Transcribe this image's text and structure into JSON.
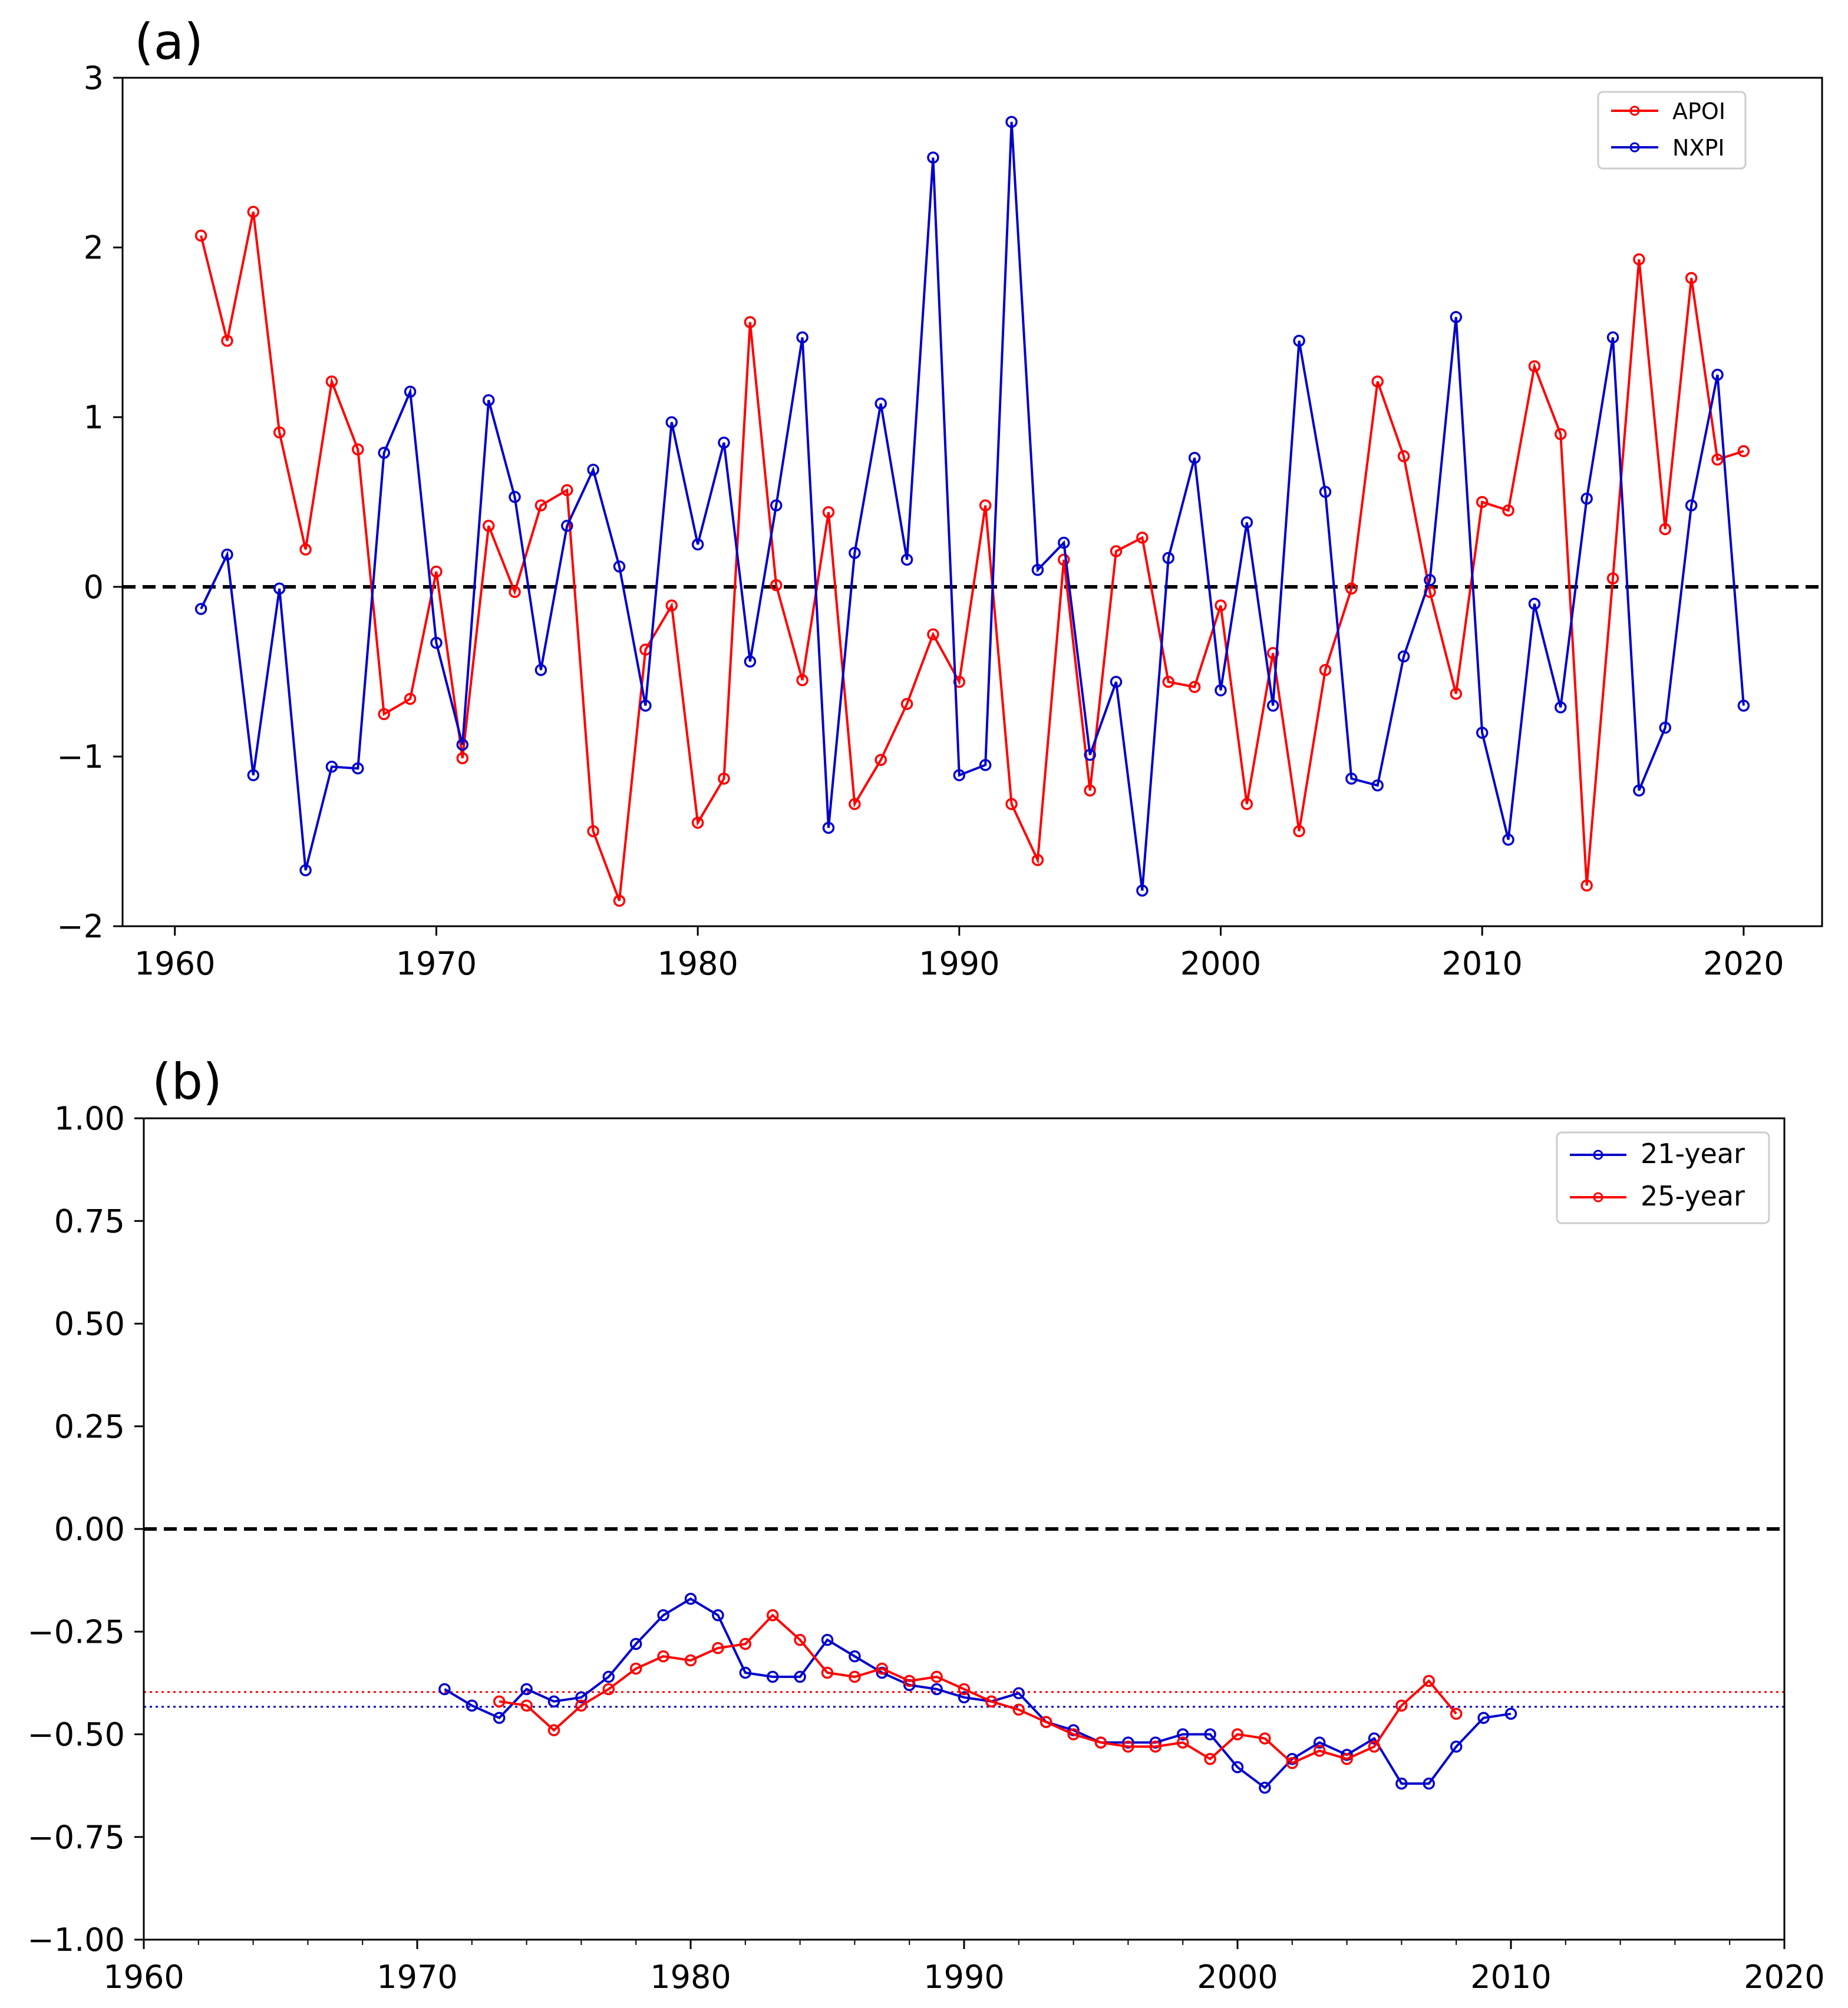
{
  "chart_data": [
    {
      "type": "line",
      "panel_label": "(a)",
      "title": "",
      "xlabel": "",
      "ylabel": "",
      "xlim": [
        1958,
        2023
      ],
      "ylim": [
        -2,
        3
      ],
      "xticks": [
        1960,
        1970,
        1980,
        1990,
        2000,
        2010,
        2020
      ],
      "xtick_labels": [
        "1960",
        "1970",
        "1980",
        "1990",
        "2000",
        "2010",
        "2020"
      ],
      "yticks": [
        -2,
        -1,
        0,
        1,
        2,
        3
      ],
      "ytick_labels": [
        "−2",
        "−1",
        "0",
        "1",
        "2",
        "3"
      ],
      "reference_lines": [
        {
          "y": 0,
          "style": "dashed",
          "color": "#000000"
        }
      ],
      "legend_position": "upper right",
      "series": [
        {
          "name": "APOI",
          "color": "#ff0000",
          "x": [
            1961,
            1962,
            1963,
            1964,
            1965,
            1966,
            1967,
            1968,
            1969,
            1970,
            1971,
            1972,
            1973,
            1974,
            1975,
            1976,
            1977,
            1978,
            1979,
            1980,
            1981,
            1982,
            1983,
            1984,
            1985,
            1986,
            1987,
            1988,
            1989,
            1990,
            1991,
            1992,
            1993,
            1994,
            1995,
            1996,
            1997,
            1998,
            1999,
            2000,
            2001,
            2002,
            2003,
            2004,
            2005,
            2006,
            2007,
            2008,
            2009,
            2010,
            2011,
            2012,
            2013,
            2014,
            2015,
            2016,
            2017,
            2018,
            2019,
            2020
          ],
          "values": [
            2.07,
            1.45,
            2.21,
            0.91,
            0.22,
            1.21,
            0.81,
            -0.75,
            -0.66,
            0.09,
            -1.01,
            0.36,
            -0.03,
            0.48,
            0.57,
            -1.44,
            -1.85,
            -0.37,
            -0.11,
            -1.39,
            -1.13,
            1.56,
            0.01,
            -0.55,
            0.44,
            -1.28,
            -1.02,
            -0.69,
            -0.28,
            -0.56,
            0.48,
            -1.28,
            -1.61,
            0.16,
            -1.2,
            0.21,
            0.29,
            -0.56,
            -0.59,
            -0.11,
            -1.28,
            -0.39,
            -1.44,
            -0.49,
            -0.01,
            1.21,
            0.77,
            -0.03,
            -0.63,
            0.5,
            0.45,
            1.3,
            0.9,
            -1.76,
            0.05,
            1.93,
            0.34,
            1.82,
            0.75,
            0.8
          ]
        },
        {
          "name": "NXPI",
          "color": "#0000cc",
          "x": [
            1961,
            1962,
            1963,
            1964,
            1965,
            1966,
            1967,
            1968,
            1969,
            1970,
            1971,
            1972,
            1973,
            1974,
            1975,
            1976,
            1977,
            1978,
            1979,
            1980,
            1981,
            1982,
            1983,
            1984,
            1985,
            1986,
            1987,
            1988,
            1989,
            1990,
            1991,
            1992,
            1993,
            1994,
            1995,
            1996,
            1997,
            1998,
            1999,
            2000,
            2001,
            2002,
            2003,
            2004,
            2005,
            2006,
            2007,
            2008,
            2009,
            2010,
            2011,
            2012,
            2013,
            2014,
            2015,
            2016,
            2017,
            2018,
            2019,
            2020
          ],
          "values": [
            -0.13,
            0.19,
            -1.11,
            -0.01,
            -1.67,
            -1.06,
            -1.07,
            0.79,
            1.15,
            -0.33,
            -0.93,
            1.1,
            0.53,
            -0.49,
            0.36,
            0.69,
            0.12,
            -0.7,
            0.97,
            0.25,
            0.85,
            -0.44,
            0.48,
            1.47,
            -1.42,
            0.2,
            1.08,
            0.16,
            2.53,
            -1.11,
            -1.05,
            2.74,
            0.1,
            0.26,
            -0.99,
            -0.56,
            -1.79,
            0.17,
            0.76,
            -0.61,
            0.38,
            -0.7,
            1.45,
            0.56,
            -1.13,
            -1.17,
            -0.41,
            0.04,
            1.59,
            -0.86,
            -1.49,
            -0.1,
            -0.71,
            0.52,
            1.47,
            -1.2,
            -0.83,
            0.48,
            1.25,
            -0.7
          ]
        }
      ]
    },
    {
      "type": "line",
      "panel_label": "(b)",
      "title": "",
      "xlabel": "",
      "ylabel": "",
      "xlim": [
        1960,
        2020
      ],
      "ylim": [
        -1.0,
        1.0
      ],
      "xticks": [
        1960,
        1970,
        1980,
        1990,
        2000,
        2010,
        2020
      ],
      "xtick_labels": [
        "1960",
        "1970",
        "1980",
        "1990",
        "2000",
        "2010",
        "2020"
      ],
      "yticks": [
        -1.0,
        -0.75,
        -0.5,
        -0.25,
        0.0,
        0.25,
        0.5,
        0.75,
        1.0
      ],
      "ytick_labels": [
        "−1.00",
        "−0.75",
        "−0.50",
        "−0.25",
        "0.00",
        "0.25",
        "0.50",
        "0.75",
        "1.00"
      ],
      "reference_lines": [
        {
          "y": 0,
          "style": "dashed",
          "color": "#000000"
        },
        {
          "y": -0.397,
          "style": "dotted",
          "color": "#ff0000"
        },
        {
          "y": -0.433,
          "style": "dotted",
          "color": "#0000cc"
        }
      ],
      "legend_position": "upper right",
      "series": [
        {
          "name": "21-year",
          "color": "#0000cc",
          "x": [
            1971,
            1972,
            1973,
            1974,
            1975,
            1976,
            1977,
            1978,
            1979,
            1980,
            1981,
            1982,
            1983,
            1984,
            1985,
            1986,
            1987,
            1988,
            1989,
            1990,
            1991,
            1992,
            1993,
            1994,
            1995,
            1996,
            1997,
            1998,
            1999,
            2000,
            2001,
            2002,
            2003,
            2004,
            2005,
            2006,
            2007,
            2008,
            2009,
            2010
          ],
          "values": [
            -0.39,
            -0.43,
            -0.46,
            -0.39,
            -0.42,
            -0.41,
            -0.36,
            -0.28,
            -0.21,
            -0.17,
            -0.21,
            -0.35,
            -0.36,
            -0.36,
            -0.27,
            -0.31,
            -0.35,
            -0.38,
            -0.39,
            -0.41,
            -0.42,
            -0.4,
            -0.47,
            -0.49,
            -0.52,
            -0.52,
            -0.52,
            -0.5,
            -0.5,
            -0.58,
            -0.63,
            -0.56,
            -0.52,
            -0.55,
            -0.51,
            -0.62,
            -0.62,
            -0.53,
            -0.46,
            -0.45
          ]
        },
        {
          "name": "25-year",
          "color": "#ff0000",
          "x": [
            1973,
            1974,
            1975,
            1976,
            1977,
            1978,
            1979,
            1980,
            1981,
            1982,
            1983,
            1984,
            1985,
            1986,
            1987,
            1988,
            1989,
            1990,
            1991,
            1992,
            1993,
            1994,
            1995,
            1996,
            1997,
            1998,
            1999,
            2000,
            2001,
            2002,
            2003,
            2004,
            2005,
            2006,
            2007,
            2008
          ],
          "values": [
            -0.42,
            -0.43,
            -0.49,
            -0.43,
            -0.39,
            -0.34,
            -0.31,
            -0.32,
            -0.29,
            -0.28,
            -0.21,
            -0.27,
            -0.35,
            -0.36,
            -0.34,
            -0.37,
            -0.36,
            -0.39,
            -0.42,
            -0.44,
            -0.47,
            -0.5,
            -0.52,
            -0.53,
            -0.53,
            -0.52,
            -0.56,
            -0.5,
            -0.51,
            -0.57,
            -0.54,
            -0.56,
            -0.53,
            -0.43,
            -0.37,
            -0.45
          ]
        }
      ]
    }
  ]
}
